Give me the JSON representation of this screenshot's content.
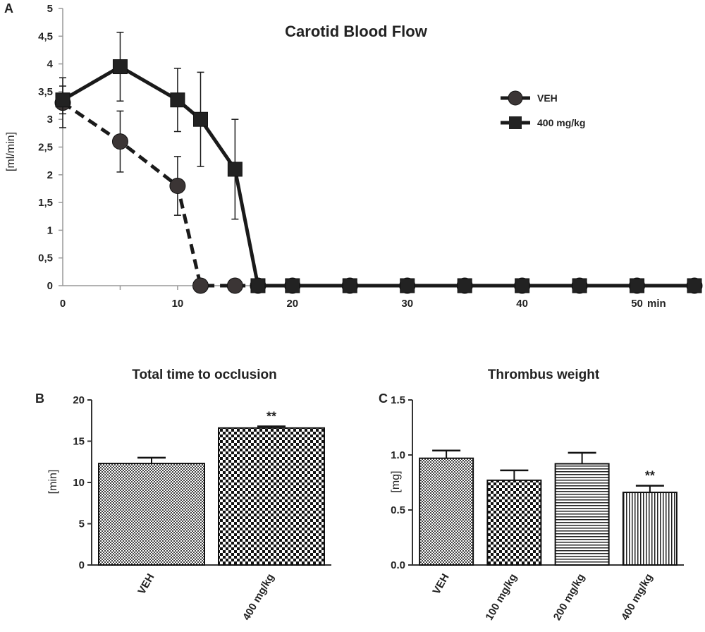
{
  "chart_data": [
    {
      "panel": "A",
      "type": "line",
      "title": "Carotid Blood Flow",
      "ylabel": "[ml/min]",
      "x_unit_label": "min",
      "ylim": [
        0,
        5
      ],
      "xlim": [
        0,
        55
      ],
      "y_ticks": [
        "0",
        "0,5",
        "1",
        "1,5",
        "2",
        "2,5",
        "3",
        "3,5",
        "4",
        "4,5",
        "5"
      ],
      "x_ticks": [
        "0",
        "10",
        "20",
        "30",
        "40",
        "50"
      ],
      "legend_position": "right",
      "series": [
        {
          "name": "VEH",
          "marker": "circle",
          "line_style": "dashed",
          "x": [
            0,
            5,
            10,
            12,
            15,
            17,
            20,
            25,
            30,
            35,
            40,
            45,
            50,
            55
          ],
          "y": [
            3.3,
            2.6,
            1.8,
            0,
            0,
            0,
            0,
            0,
            0,
            0,
            0,
            0,
            0,
            0
          ],
          "err": [
            0.45,
            0.55,
            0.53,
            0,
            0,
            0,
            0,
            0,
            0,
            0,
            0,
            0,
            0,
            0
          ]
        },
        {
          "name": "400 mg/kg",
          "marker": "square",
          "line_style": "solid",
          "x": [
            0,
            5,
            10,
            12,
            15,
            17,
            20,
            25,
            30,
            35,
            40,
            45,
            50,
            55
          ],
          "y": [
            3.35,
            3.95,
            3.35,
            3.0,
            2.1,
            0,
            0,
            0,
            0,
            0,
            0,
            0,
            0,
            0
          ],
          "err": [
            0.25,
            0.62,
            0.57,
            0.85,
            0.9,
            0,
            0,
            0,
            0,
            0,
            0,
            0,
            0,
            0
          ]
        }
      ]
    },
    {
      "panel": "B",
      "type": "bar",
      "title": "Total time to occlusion",
      "ylabel": "[min]",
      "ylim": [
        0,
        20
      ],
      "y_ticks": [
        "0",
        "5",
        "10",
        "15",
        "20"
      ],
      "categories": [
        "VEH",
        "400 mg/kg"
      ],
      "values": [
        12.3,
        16.6
      ],
      "errors": [
        0.7,
        0.2
      ],
      "patterns": [
        "fine-checker",
        "checker"
      ],
      "annotations": [
        "",
        "**"
      ]
    },
    {
      "panel": "C",
      "type": "bar",
      "title": "Thrombus weight",
      "ylabel": "[mg]",
      "ylim": [
        0,
        1.5
      ],
      "y_ticks": [
        "0.0",
        "0.5",
        "1.0",
        "1.5"
      ],
      "categories": [
        "VEH",
        "100 mg/kg",
        "200 mg/kg",
        "400 mg/kg"
      ],
      "values": [
        0.97,
        0.77,
        0.92,
        0.66
      ],
      "errors": [
        0.07,
        0.09,
        0.1,
        0.06
      ],
      "patterns": [
        "fine-checker",
        "checker",
        "hstripes",
        "vstripes"
      ],
      "annotations": [
        "",
        "",
        "",
        "**"
      ]
    }
  ]
}
